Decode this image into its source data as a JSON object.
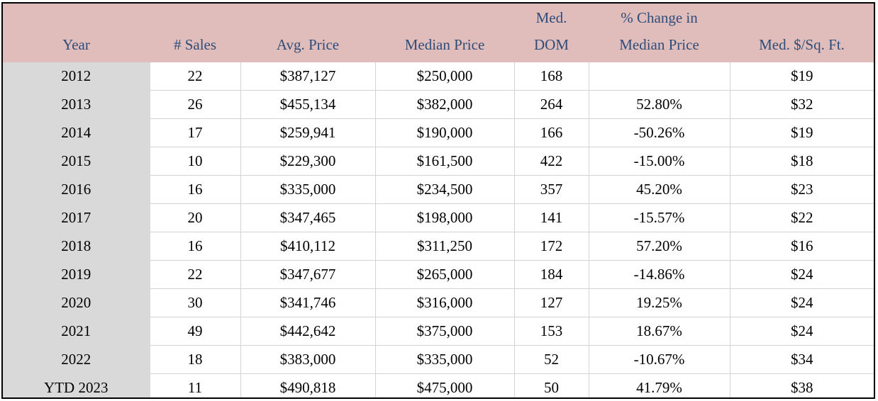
{
  "table": {
    "headers": {
      "year": [
        "Year"
      ],
      "sales": [
        "# Sales"
      ],
      "avg_price": [
        "Avg. Price"
      ],
      "median_price": [
        "Median Price"
      ],
      "med_dom": [
        "Med.",
        "DOM"
      ],
      "pct_change": [
        "% Change in",
        "Median Price"
      ],
      "med_sqft": [
        "Med. $/Sq. Ft."
      ]
    },
    "rows": [
      {
        "year": "2012",
        "sales": "22",
        "avg_price": "$387,127",
        "median_price": "$250,000",
        "med_dom": "168",
        "pct_change": "",
        "med_sqft": "$19"
      },
      {
        "year": "2013",
        "sales": "26",
        "avg_price": "$455,134",
        "median_price": "$382,000",
        "med_dom": "264",
        "pct_change": "52.80%",
        "med_sqft": "$32"
      },
      {
        "year": "2014",
        "sales": "17",
        "avg_price": "$259,941",
        "median_price": "$190,000",
        "med_dom": "166",
        "pct_change": "-50.26%",
        "med_sqft": "$19"
      },
      {
        "year": "2015",
        "sales": "10",
        "avg_price": "$229,300",
        "median_price": "$161,500",
        "med_dom": "422",
        "pct_change": "-15.00%",
        "med_sqft": "$18"
      },
      {
        "year": "2016",
        "sales": "16",
        "avg_price": "$335,000",
        "median_price": "$234,500",
        "med_dom": "357",
        "pct_change": "45.20%",
        "med_sqft": "$23"
      },
      {
        "year": "2017",
        "sales": "20",
        "avg_price": "$347,465",
        "median_price": "$198,000",
        "med_dom": "141",
        "pct_change": "-15.57%",
        "med_sqft": "$22"
      },
      {
        "year": "2018",
        "sales": "16",
        "avg_price": "$410,112",
        "median_price": "$311,250",
        "med_dom": "172",
        "pct_change": "57.20%",
        "med_sqft": "$16"
      },
      {
        "year": "2019",
        "sales": "22",
        "avg_price": "$347,677",
        "median_price": "$265,000",
        "med_dom": "184",
        "pct_change": "-14.86%",
        "med_sqft": "$24"
      },
      {
        "year": "2020",
        "sales": "30",
        "avg_price": "$341,746",
        "median_price": "$316,000",
        "med_dom": "127",
        "pct_change": "19.25%",
        "med_sqft": "$24"
      },
      {
        "year": "2021",
        "sales": "49",
        "avg_price": "$442,642",
        "median_price": "$375,000",
        "med_dom": "153",
        "pct_change": "18.67%",
        "med_sqft": "$24"
      },
      {
        "year": "2022",
        "sales": "18",
        "avg_price": "$383,000",
        "median_price": "$335,000",
        "med_dom": "52",
        "pct_change": "-10.67%",
        "med_sqft": "$34"
      },
      {
        "year": "YTD 2023",
        "sales": "11",
        "avg_price": "$490,818",
        "median_price": "$475,000",
        "med_dom": "50",
        "pct_change": "41.79%",
        "med_sqft": "$38"
      }
    ]
  },
  "colors": {
    "header_background": "#e0bcbb",
    "header_text": "#2f4d78",
    "year_column_background": "#d9d9d9",
    "grid_lines": "#d3d3d3"
  }
}
